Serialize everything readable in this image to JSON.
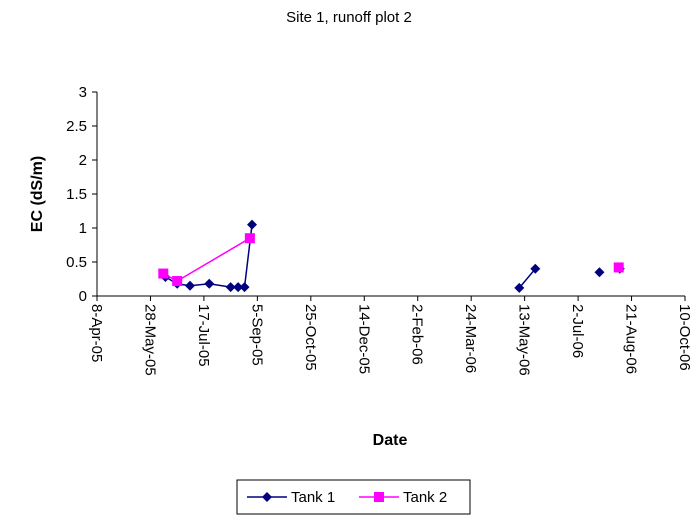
{
  "chart_data": {
    "type": "line",
    "title": "Site 1, runoff plot 2",
    "x_label": "Date",
    "y_label": "EC (dS/m)",
    "xlim": [
      "2005-04-08",
      "2006-10-10"
    ],
    "xticks": [
      {
        "value": "2005-04-08",
        "label": "8-Apr-05"
      },
      {
        "value": "2005-05-28",
        "label": "28-May-05"
      },
      {
        "value": "2005-07-17",
        "label": "17-Jul-05"
      },
      {
        "value": "2005-09-05",
        "label": "5-Sep-05"
      },
      {
        "value": "2005-10-25",
        "label": "25-Oct-05"
      },
      {
        "value": "2005-12-14",
        "label": "14-Dec-05"
      },
      {
        "value": "2006-02-02",
        "label": "2-Feb-06"
      },
      {
        "value": "2006-03-24",
        "label": "24-Mar-06"
      },
      {
        "value": "2006-05-13",
        "label": "13-May-06"
      },
      {
        "value": "2006-07-02",
        "label": "2-Jul-06"
      },
      {
        "value": "2006-08-21",
        "label": "21-Aug-06"
      },
      {
        "value": "2006-10-10",
        "label": "10-Oct-06"
      }
    ],
    "ylim": [
      0,
      3
    ],
    "yticks": [
      0,
      0.5,
      1,
      1.5,
      2,
      2.5,
      3
    ],
    "legend": "bottom",
    "series": [
      {
        "name": "Tank 1",
        "color": "#000080",
        "marker": "diamond",
        "x": [
          "2005-06-11",
          "2005-06-22",
          "2005-07-04",
          "2005-07-22",
          "2005-08-11",
          "2005-08-18",
          "2005-08-24",
          "2005-08-31",
          null,
          "2006-05-08",
          "2006-05-23",
          null,
          "2006-07-22",
          null,
          "2006-08-10"
        ],
        "values": [
          0.28,
          0.18,
          0.15,
          0.18,
          0.13,
          0.13,
          0.13,
          1.05,
          null,
          0.12,
          0.4,
          null,
          0.35,
          null,
          0.4
        ]
      },
      {
        "name": "Tank 2",
        "color": "#ff00ff",
        "marker": "square",
        "x": [
          "2005-06-09",
          "2005-06-22",
          "2005-08-29",
          null,
          "2006-08-09"
        ],
        "values": [
          0.33,
          0.22,
          0.85,
          null,
          0.42
        ]
      }
    ]
  }
}
